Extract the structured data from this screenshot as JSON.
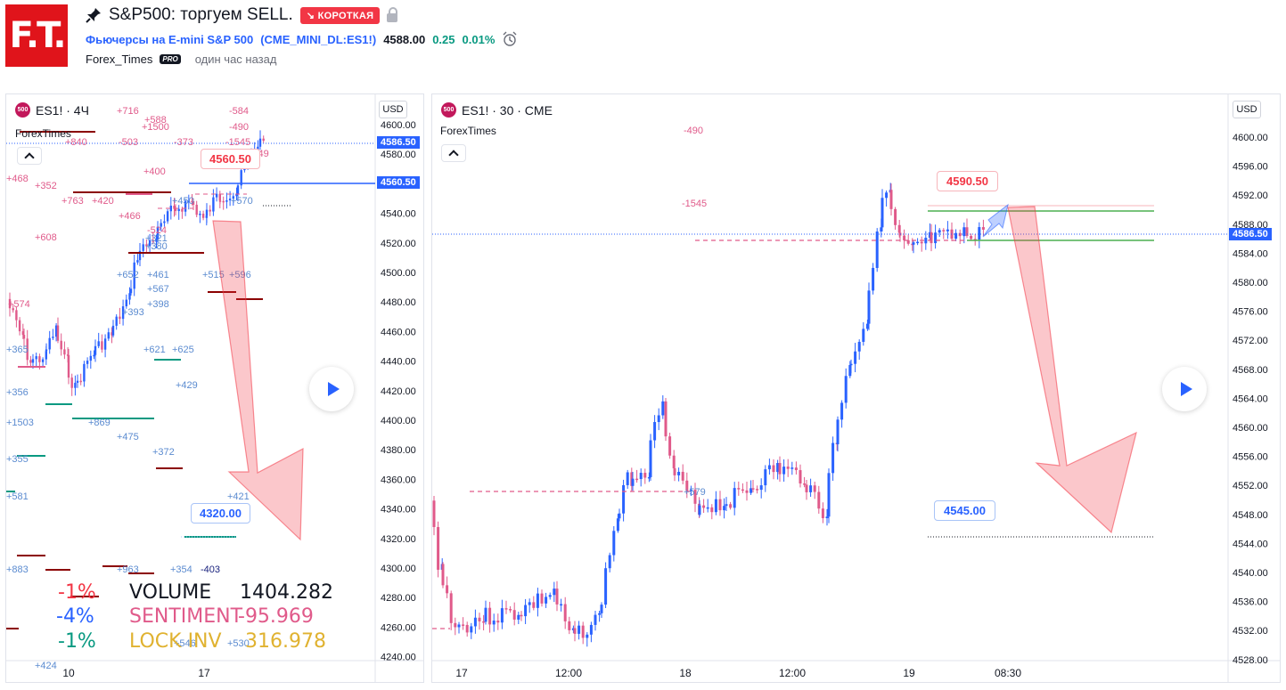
{
  "header": {
    "logo_text": "F.T.",
    "pin_icon": "pin-icon",
    "title": "S&P500: торгуем SELL.",
    "badge": "↘ КОРОТКАЯ",
    "symbol_name": "Фьючерсы на E-mini S&P 500",
    "symbol_code": "(CME_MINI_DL:ES1!)",
    "price": "4588.00",
    "change": "0.25",
    "change_pct": "0.01%",
    "author": "Forex_Times",
    "pro": "PRO",
    "ago": "один час назад"
  },
  "left": {
    "symbol": "ES1! · 4Ч",
    "author": "ForexTimes",
    "badge500": "500",
    "currency": "USD",
    "last_price": "4586.50",
    "line_price": "4560.50",
    "target_top": "4560.50",
    "target_bottom": "4320.00",
    "price_ticks": [
      "4600.00",
      "4580.00",
      "4560.00",
      "4540.00",
      "4520.00",
      "4500.00",
      "4480.00",
      "4460.00",
      "4440.00",
      "4420.00",
      "4400.00",
      "4380.00",
      "4360.00",
      "4340.00",
      "4320.00",
      "4300.00",
      "4280.00",
      "4260.00",
      "4240.00"
    ],
    "time_ticks": [
      "10",
      "17"
    ],
    "annotations": [
      "+716",
      "+588",
      "+1500",
      "-584",
      "-490",
      "-503",
      "-373",
      "-1545",
      "+840",
      "+468",
      "+352",
      "+400",
      "+763",
      "+420",
      "+466",
      "+608",
      "-524",
      "+574",
      "+652",
      "+461",
      "+567",
      "+398",
      "+515",
      "+596",
      "+621",
      "+625",
      "+429",
      "+365",
      "+356",
      "+1503",
      "+869",
      "+475",
      "+372",
      "+355",
      "+581",
      "+421",
      "+883",
      "+963",
      "+354",
      "-403",
      "+546",
      "+530",
      "+424",
      "+450",
      "+570",
      "+321",
      "+380",
      "+349",
      "+393"
    ],
    "stats": {
      "p1": "-1%",
      "p2": "-4%",
      "p3": "-1%",
      "l1": "VOLUME",
      "l2": "SENTIMENT",
      "l3": "LOCK INV",
      "v1": "1404.282",
      "v2": "-95.969",
      "v3": "316.978"
    }
  },
  "right": {
    "symbol": "ES1! · 30 · CME",
    "author": "ForexTimes",
    "badge500": "500",
    "currency": "USD",
    "last_price": "4586.50",
    "target_top": "4590.50",
    "target_bottom": "4545.00",
    "price_ticks": [
      "4600.00",
      "4596.00",
      "4592.00",
      "4588.00",
      "4584.00",
      "4580.00",
      "4576.00",
      "4572.00",
      "4568.00",
      "4564.00",
      "4560.00",
      "4556.00",
      "4552.00",
      "4548.00",
      "4544.00",
      "4540.00",
      "4536.00",
      "4532.00",
      "4528.00"
    ],
    "time_ticks": [
      "17",
      "12:00",
      "18",
      "12:00",
      "19",
      "08:30"
    ],
    "annotations": [
      "-490",
      "-1545",
      "+579"
    ]
  },
  "colors": {
    "red": "#f23645",
    "blue": "#2962ff",
    "green": "#089981",
    "pink": "#e91e63",
    "orange": "#e0b230"
  }
}
